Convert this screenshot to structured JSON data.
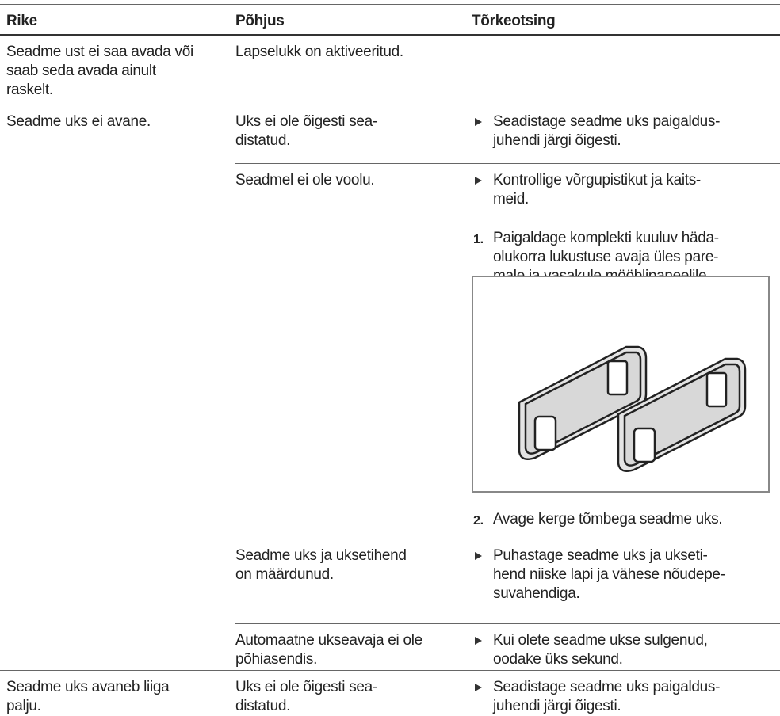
{
  "header": {
    "columns": [
      "Rike",
      "Põhjus",
      "Tõrkeotsing"
    ]
  },
  "rows": [
    {
      "fault": "Seadme ust ei saa avada või\nsaab seda avada ainult\nraskelt.",
      "causes": [
        {
          "cause": "Lapselukk on aktiveeritud."
        }
      ]
    },
    {
      "fault": "Seadme uks ei avane.",
      "causes": [
        {
          "cause": "Uks ei ole õigesti sea-\ndistatud.",
          "remedy": {
            "bullet": "Seadistage seadme uks paigaldus-\njuhendi järgi õigesti."
          }
        },
        {
          "cause": "Seadmel ei ole voolu.",
          "remedy": {
            "bullet": "Kontrollige võrgupistikut ja kaits-\nmeid.",
            "steps": [
              {
                "number": "1.",
                "text": "Paigaldage komplekti kuuluv häda-\nolukorra lukustuse avaja üles pare-\nmale ja vasakule mööblipaneelile."
              },
              {
                "number": "2.",
                "text": "Avage kerge tõmbega seadme uks."
              }
            ]
          }
        },
        {
          "cause": "Seadme uks ja uksetihend\non määrdunud.",
          "remedy": {
            "bullet": "Puhastage seadme uks ja ukseti-\nhend niiske lapi ja vähese nõudepe-\nsuvahendiga."
          }
        },
        {
          "cause": "Automaatne ukseavaja ei ole\npõhiasendis.",
          "remedy": {
            "bullet": "Kui olete seadme ukse sulgenud,\noodake üks sekund."
          }
        }
      ]
    },
    {
      "fault": "Seadme uks avaneb liiga\npalju.",
      "causes": [
        {
          "cause": "Uks ei ole õigesti sea-\ndistatud.",
          "remedy": {
            "bullet": "Seadistage seadme uks paigaldus-\njuhendi järgi õigesti."
          }
        }
      ]
    }
  ]
}
